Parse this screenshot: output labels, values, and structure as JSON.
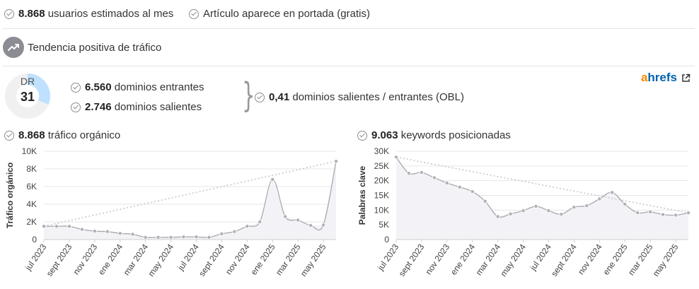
{
  "top": {
    "users_value": "8.868",
    "users_label": " usuarios estimados al mes",
    "frontpage_label": "Artículo aparece en portada (gratis)"
  },
  "trend": {
    "label": "Tendencia positiva de tráfico"
  },
  "dr": {
    "label": "DR",
    "value": "31",
    "fraction": 0.31
  },
  "links": {
    "incoming_value": "6.560",
    "incoming_label": " dominios entrantes",
    "outgoing_value": "2.746",
    "outgoing_label": " dominios salientes",
    "obl_value": "0,41",
    "obl_label": " dominios salientes / entrantes (OBL)"
  },
  "brand": {
    "a": "a",
    "rest": "hrefs"
  },
  "organic": {
    "value": "8.868",
    "label": " tráfico orgánico"
  },
  "keywords": {
    "value": "9.063",
    "label": " keywords posicionadas"
  },
  "colors": {
    "line": "#a8a8ae",
    "fill": "#f3f3f7",
    "trendline": "#c8c8c8",
    "grid": "#e6e6e6",
    "orange": "#ff8800",
    "blue": "#0063ae",
    "dr_fill": "#bfe0ff"
  },
  "chart_data": [
    {
      "type": "area",
      "ylabel": "Tráfico orgánico",
      "ylim": [
        0,
        10000
      ],
      "yticks": [
        "0",
        "2K",
        "4K",
        "6K",
        "8K",
        "10K"
      ],
      "xticks": [
        "jul 2023",
        "sept 2023",
        "nov 2023",
        "ene 2024",
        "mar 2024",
        "may 2024",
        "jul 2024",
        "sept 2024",
        "nov 2024",
        "ene 2025",
        "mar 2025",
        "may 2025"
      ],
      "values": [
        1500,
        1500,
        1500,
        1150,
        950,
        900,
        700,
        600,
        250,
        250,
        250,
        300,
        300,
        250,
        650,
        900,
        1500,
        2000,
        6800,
        2600,
        2200,
        1600,
        1650,
        8868
      ],
      "trendline": [
        1500,
        8868
      ],
      "grid": true
    },
    {
      "type": "area",
      "ylabel": "Palabras clave",
      "ylim": [
        0,
        30000
      ],
      "yticks": [
        "0",
        "5K",
        "10K",
        "15K",
        "20K",
        "25K",
        "30K"
      ],
      "xticks": [
        "jul 2023",
        "sept 2023",
        "nov 2023",
        "ene 2024",
        "mar 2024",
        "may 2024",
        "jul 2024",
        "sept 2024",
        "nov 2024",
        "ene 2025",
        "mar 2025",
        "may 2025"
      ],
      "values": [
        28000,
        22500,
        22800,
        21000,
        19200,
        17800,
        16300,
        13000,
        7800,
        8700,
        9800,
        11300,
        9800,
        8600,
        11000,
        11500,
        13800,
        16000,
        12000,
        9100,
        9400,
        8500,
        8300,
        9063
      ],
      "trendline": [
        28000,
        9063
      ],
      "grid": true
    }
  ]
}
